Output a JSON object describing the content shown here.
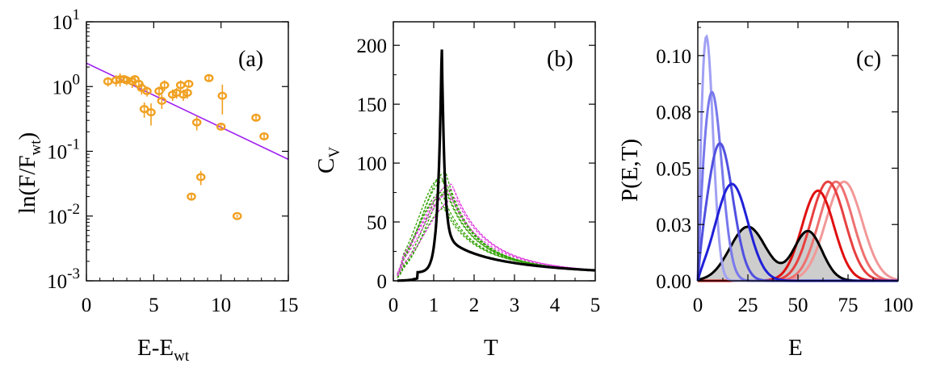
{
  "chart_data": [
    {
      "panel": "(a)",
      "type": "scatter",
      "xlabel_main": "E-E",
      "xlabel_sub": "wt",
      "ylabel_main": "ln(F/F",
      "ylabel_sub": "wt",
      "ylabel_close": ")",
      "xlim": [
        0,
        15
      ],
      "ylim": [
        0.001,
        10
      ],
      "yscale": "log",
      "xticks": [
        0,
        5,
        10,
        15
      ],
      "yticks": [
        {
          "value": 10,
          "base": "10",
          "exp": "1"
        },
        {
          "value": 1,
          "base": "10",
          "exp": "0"
        },
        {
          "value": 0.1,
          "base": "10",
          "exp": "-1"
        },
        {
          "value": 0.01,
          "base": "10",
          "exp": "-2"
        },
        {
          "value": 0.001,
          "base": "10",
          "exp": "-3"
        }
      ],
      "marker_color": "#f0a020",
      "fit_color": "#a020f0",
      "fit_line": {
        "x": [
          0,
          15
        ],
        "y": [
          2.3,
          0.075
        ]
      },
      "points": [
        {
          "x": 1.6,
          "y": 1.2,
          "err": 0.2
        },
        {
          "x": 2.2,
          "y": 1.25,
          "err": 0.25
        },
        {
          "x": 2.5,
          "y": 1.3,
          "err": 0.3
        },
        {
          "x": 2.8,
          "y": 1.3,
          "err": 0.2
        },
        {
          "x": 3.0,
          "y": 1.25,
          "err": 0.2
        },
        {
          "x": 3.4,
          "y": 1.2,
          "err": 0.25
        },
        {
          "x": 3.6,
          "y": 1.3,
          "err": 0.2
        },
        {
          "x": 3.9,
          "y": 1.1,
          "err": 0.2
        },
        {
          "x": 4.1,
          "y": 0.95,
          "err": 0.2
        },
        {
          "x": 4.3,
          "y": 0.45,
          "err": 0.12
        },
        {
          "x": 4.5,
          "y": 0.85,
          "err": 0.15
        },
        {
          "x": 4.8,
          "y": 0.4,
          "err": 0.15
        },
        {
          "x": 5.4,
          "y": 0.85,
          "err": 0.15
        },
        {
          "x": 5.6,
          "y": 0.6,
          "err": 0.15
        },
        {
          "x": 5.8,
          "y": 1.05,
          "err": 0.2
        },
        {
          "x": 6.4,
          "y": 0.75,
          "err": 0.15
        },
        {
          "x": 6.7,
          "y": 0.8,
          "err": 0.15
        },
        {
          "x": 7.0,
          "y": 1.05,
          "err": 0.2
        },
        {
          "x": 7.2,
          "y": 0.75,
          "err": 0.15
        },
        {
          "x": 7.5,
          "y": 0.8,
          "err": 0.15
        },
        {
          "x": 7.6,
          "y": 1.1,
          "err": 0.15
        },
        {
          "x": 7.8,
          "y": 0.02,
          "err": 0.002
        },
        {
          "x": 8.2,
          "y": 0.28,
          "err": 0.07
        },
        {
          "x": 8.5,
          "y": 0.04,
          "err": 0.01
        },
        {
          "x": 9.1,
          "y": 1.35,
          "err": 0.15
        },
        {
          "x": 10.0,
          "y": 0.24,
          "err": 0.03
        },
        {
          "x": 10.1,
          "y": 0.72,
          "err": 0.35
        },
        {
          "x": 11.2,
          "y": 0.01,
          "err": 0.0005
        },
        {
          "x": 12.6,
          "y": 0.33,
          "err": 0.04
        },
        {
          "x": 13.2,
          "y": 0.17,
          "err": 0.02
        }
      ]
    },
    {
      "panel": "(b)",
      "type": "line",
      "xlabel": "T",
      "ylabel_main": "C",
      "ylabel_sub": "V",
      "xlim": [
        0,
        5
      ],
      "ylim": [
        0,
        220
      ],
      "xticks": [
        0,
        1,
        2,
        3,
        4,
        5
      ],
      "yticks": [
        0,
        50,
        100,
        150,
        200
      ],
      "main_series": {
        "name": "black",
        "color": "#000000",
        "peak_T": 1.2,
        "peak_C": 203
      },
      "green_series": {
        "color": "#30a000",
        "peaks": [
          {
            "T": 1.2,
            "C": 88
          },
          {
            "T": 1.3,
            "C": 92
          },
          {
            "T": 1.25,
            "C": 85
          },
          {
            "T": 1.35,
            "C": 80
          },
          {
            "T": 1.2,
            "C": 75
          },
          {
            "T": 1.15,
            "C": 70
          },
          {
            "T": 1.4,
            "C": 78
          },
          {
            "T": 1.3,
            "C": 62
          }
        ]
      },
      "magenta_series": {
        "color": "#e040e0",
        "peaks": [
          {
            "T": 1.45,
            "C": 82
          },
          {
            "T": 1.5,
            "C": 78
          },
          {
            "T": 1.4,
            "C": 74
          },
          {
            "T": 1.55,
            "C": 70
          }
        ]
      }
    },
    {
      "panel": "(c)",
      "type": "line",
      "xlabel": "E",
      "ylabel": "P(E,T)",
      "xlim": [
        0,
        100
      ],
      "ylim": [
        0,
        0.115
      ],
      "xticks": [
        0,
        25,
        50,
        75,
        100
      ],
      "yticks": [
        {
          "value": 0.0,
          "label": "0.00"
        },
        {
          "value": 0.025,
          "label": "0.03"
        },
        {
          "value": 0.05,
          "label": "0.05"
        },
        {
          "value": 0.075,
          "label": "0.08"
        },
        {
          "value": 0.1,
          "label": "0.10"
        }
      ],
      "blue_series": [
        {
          "color": "#a0a0f4",
          "mu": 4,
          "sigma": 3.5,
          "peak": 0.112
        },
        {
          "color": "#7878ec",
          "mu": 7,
          "sigma": 5,
          "peak": 0.084
        },
        {
          "color": "#5050e0",
          "mu": 11,
          "sigma": 6.5,
          "peak": 0.061
        },
        {
          "color": "#2020d8",
          "mu": 17,
          "sigma": 8,
          "peak": 0.043
        }
      ],
      "gray_series": {
        "color": "#000000",
        "fill": "#c4c4c4",
        "components": [
          {
            "mu": 25,
            "sigma": 9,
            "peak": 0.024
          },
          {
            "mu": 55,
            "sigma": 7,
            "peak": 0.022
          }
        ]
      },
      "red_series": [
        {
          "color": "#e01010",
          "mu": 60,
          "sigma": 8,
          "peak": 0.04
        },
        {
          "color": "#e84040",
          "mu": 65,
          "sigma": 8.5,
          "peak": 0.044
        },
        {
          "color": "#ee7070",
          "mu": 69,
          "sigma": 8.5,
          "peak": 0.044
        },
        {
          "color": "#f29898",
          "mu": 73,
          "sigma": 9,
          "peak": 0.044
        }
      ]
    }
  ]
}
